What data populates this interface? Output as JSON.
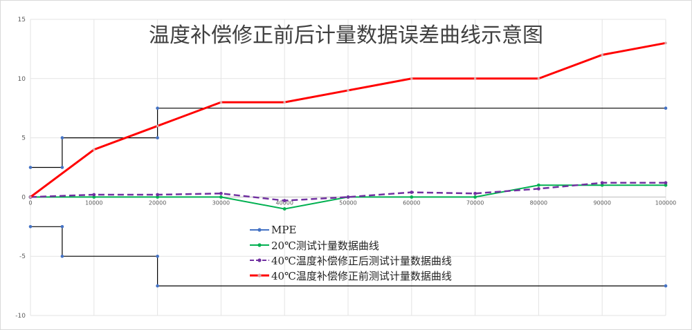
{
  "chart_data": {
    "type": "line",
    "title": "温度补偿修正前后计量数据误差曲线示意图",
    "xlabel": "",
    "ylabel": "",
    "xlim": [
      0,
      100000
    ],
    "ylim": [
      -10,
      15
    ],
    "xticks": [
      0,
      10000,
      20000,
      30000,
      40000,
      50000,
      60000,
      70000,
      80000,
      90000,
      100000
    ],
    "yticks": [
      -10,
      -5,
      0,
      5,
      10,
      15
    ],
    "grid": true,
    "legend_position": "bottom-center inside plot",
    "series": [
      {
        "name": "MPE",
        "color": "#000000",
        "marker_color": "#4472c4",
        "style": "solid",
        "points": [
          [
            0,
            2.5
          ],
          [
            5000,
            2.5
          ],
          [
            5000,
            5
          ],
          [
            20000,
            5
          ],
          [
            20000,
            7.5
          ],
          [
            100000,
            7.5
          ]
        ],
        "points_lower": [
          [
            0,
            -2.5
          ],
          [
            5000,
            -2.5
          ],
          [
            5000,
            -5
          ],
          [
            20000,
            -5
          ],
          [
            20000,
            -7.5
          ],
          [
            100000,
            -7.5
          ]
        ],
        "markers": [
          [
            0,
            2.5
          ],
          [
            5000,
            2.5
          ],
          [
            5000,
            5
          ],
          [
            20000,
            5
          ],
          [
            20000,
            7.5
          ],
          [
            100000,
            7.5
          ],
          [
            0,
            -2.5
          ],
          [
            5000,
            -2.5
          ],
          [
            5000,
            -5
          ],
          [
            20000,
            -5
          ],
          [
            20000,
            -7.5
          ],
          [
            100000,
            -7.5
          ]
        ]
      },
      {
        "name": "20℃测试计量数据曲线",
        "color": "#00b050",
        "style": "solid",
        "points": [
          [
            0,
            0
          ],
          [
            10000,
            0
          ],
          [
            20000,
            0
          ],
          [
            30000,
            0
          ],
          [
            40000,
            -1
          ],
          [
            50000,
            0
          ],
          [
            60000,
            0
          ],
          [
            70000,
            0
          ],
          [
            80000,
            1
          ],
          [
            90000,
            1
          ],
          [
            100000,
            1
          ]
        ]
      },
      {
        "name": "40℃温度补偿修正后测试计量数据曲线",
        "color": "#7030a0",
        "style": "dashed",
        "points": [
          [
            0,
            0
          ],
          [
            10000,
            0.2
          ],
          [
            20000,
            0.2
          ],
          [
            30000,
            0.3
          ],
          [
            40000,
            -0.3
          ],
          [
            50000,
            0
          ],
          [
            60000,
            0.4
          ],
          [
            70000,
            0.3
          ],
          [
            80000,
            0.7
          ],
          [
            90000,
            1.2
          ],
          [
            100000,
            1.2
          ]
        ]
      },
      {
        "name": "40℃温度补偿修正前测试计量数据曲线",
        "color": "#ff0000",
        "style": "solid",
        "points": [
          [
            0,
            0
          ],
          [
            10000,
            4
          ],
          [
            20000,
            6
          ],
          [
            30000,
            8
          ],
          [
            40000,
            8
          ],
          [
            50000,
            9
          ],
          [
            60000,
            10
          ],
          [
            70000,
            10
          ],
          [
            80000,
            10
          ],
          [
            90000,
            12
          ],
          [
            100000,
            13
          ]
        ]
      }
    ]
  }
}
